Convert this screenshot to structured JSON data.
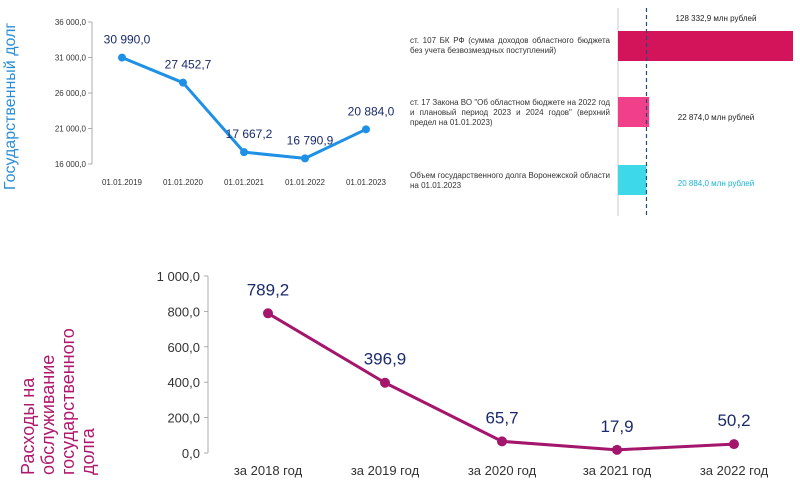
{
  "chart_data": [
    {
      "id": "debt",
      "type": "line",
      "title": "Государственный долг",
      "categories": [
        "01.01.2019",
        "01.01.2020",
        "01.01.2021",
        "01.01.2022",
        "01.01.2023"
      ],
      "values": [
        30990.0,
        27452.7,
        17667.2,
        16790.9,
        20884.0
      ],
      "value_labels": [
        "30 990,0",
        "27 452,7",
        "17 667,2",
        "16 790,9",
        "20 884,0"
      ],
      "y_ticks": [
        "36 000,0",
        "31 000,0",
        "26 000,0",
        "21 000,0",
        "16 000,0"
      ],
      "ylim": [
        16000,
        36000
      ],
      "color": "#1e90e6"
    },
    {
      "id": "limits",
      "type": "bar",
      "orientation": "horizontal",
      "bars": [
        {
          "label": "ст. 107 БК РФ (сумма доходов областного бюджета без учета безвозмездных поступлений)",
          "value": 128332.9,
          "value_label": "128 332,9 млн рублей",
          "color": "#d4145a"
        },
        {
          "label": "ст. 17 Закона ВО \"Об областном бюджете на 2022 год и плановый период 2023 и 2024 годов\" (верхний предел на 01.01.2023)",
          "value": 22874.0,
          "value_label": "22 874,0 млн рублей",
          "color": "#f0408a"
        },
        {
          "label": "Объем государственного долга Воронежской области на 01.01.2023",
          "value": 20884.0,
          "value_label": "20 884,0 млн рублей",
          "color": "#3ed9e8"
        }
      ]
    },
    {
      "id": "service",
      "type": "line",
      "title": "Расходы на обслуживание государственного долга",
      "categories": [
        "за 2018 год",
        "за 2019 год",
        "за 2020 год",
        "за 2021 год",
        "за 2022 год"
      ],
      "values": [
        789.2,
        396.9,
        65.7,
        17.9,
        50.2
      ],
      "value_labels": [
        "789,2",
        "396,9",
        "65,7",
        "17,9",
        "50,2"
      ],
      "y_ticks": [
        "1 000,0",
        "800,0",
        "600,0",
        "400,0",
        "200,0",
        "0,0"
      ],
      "ylim": [
        0,
        1000
      ],
      "color": "#a3166b"
    }
  ]
}
